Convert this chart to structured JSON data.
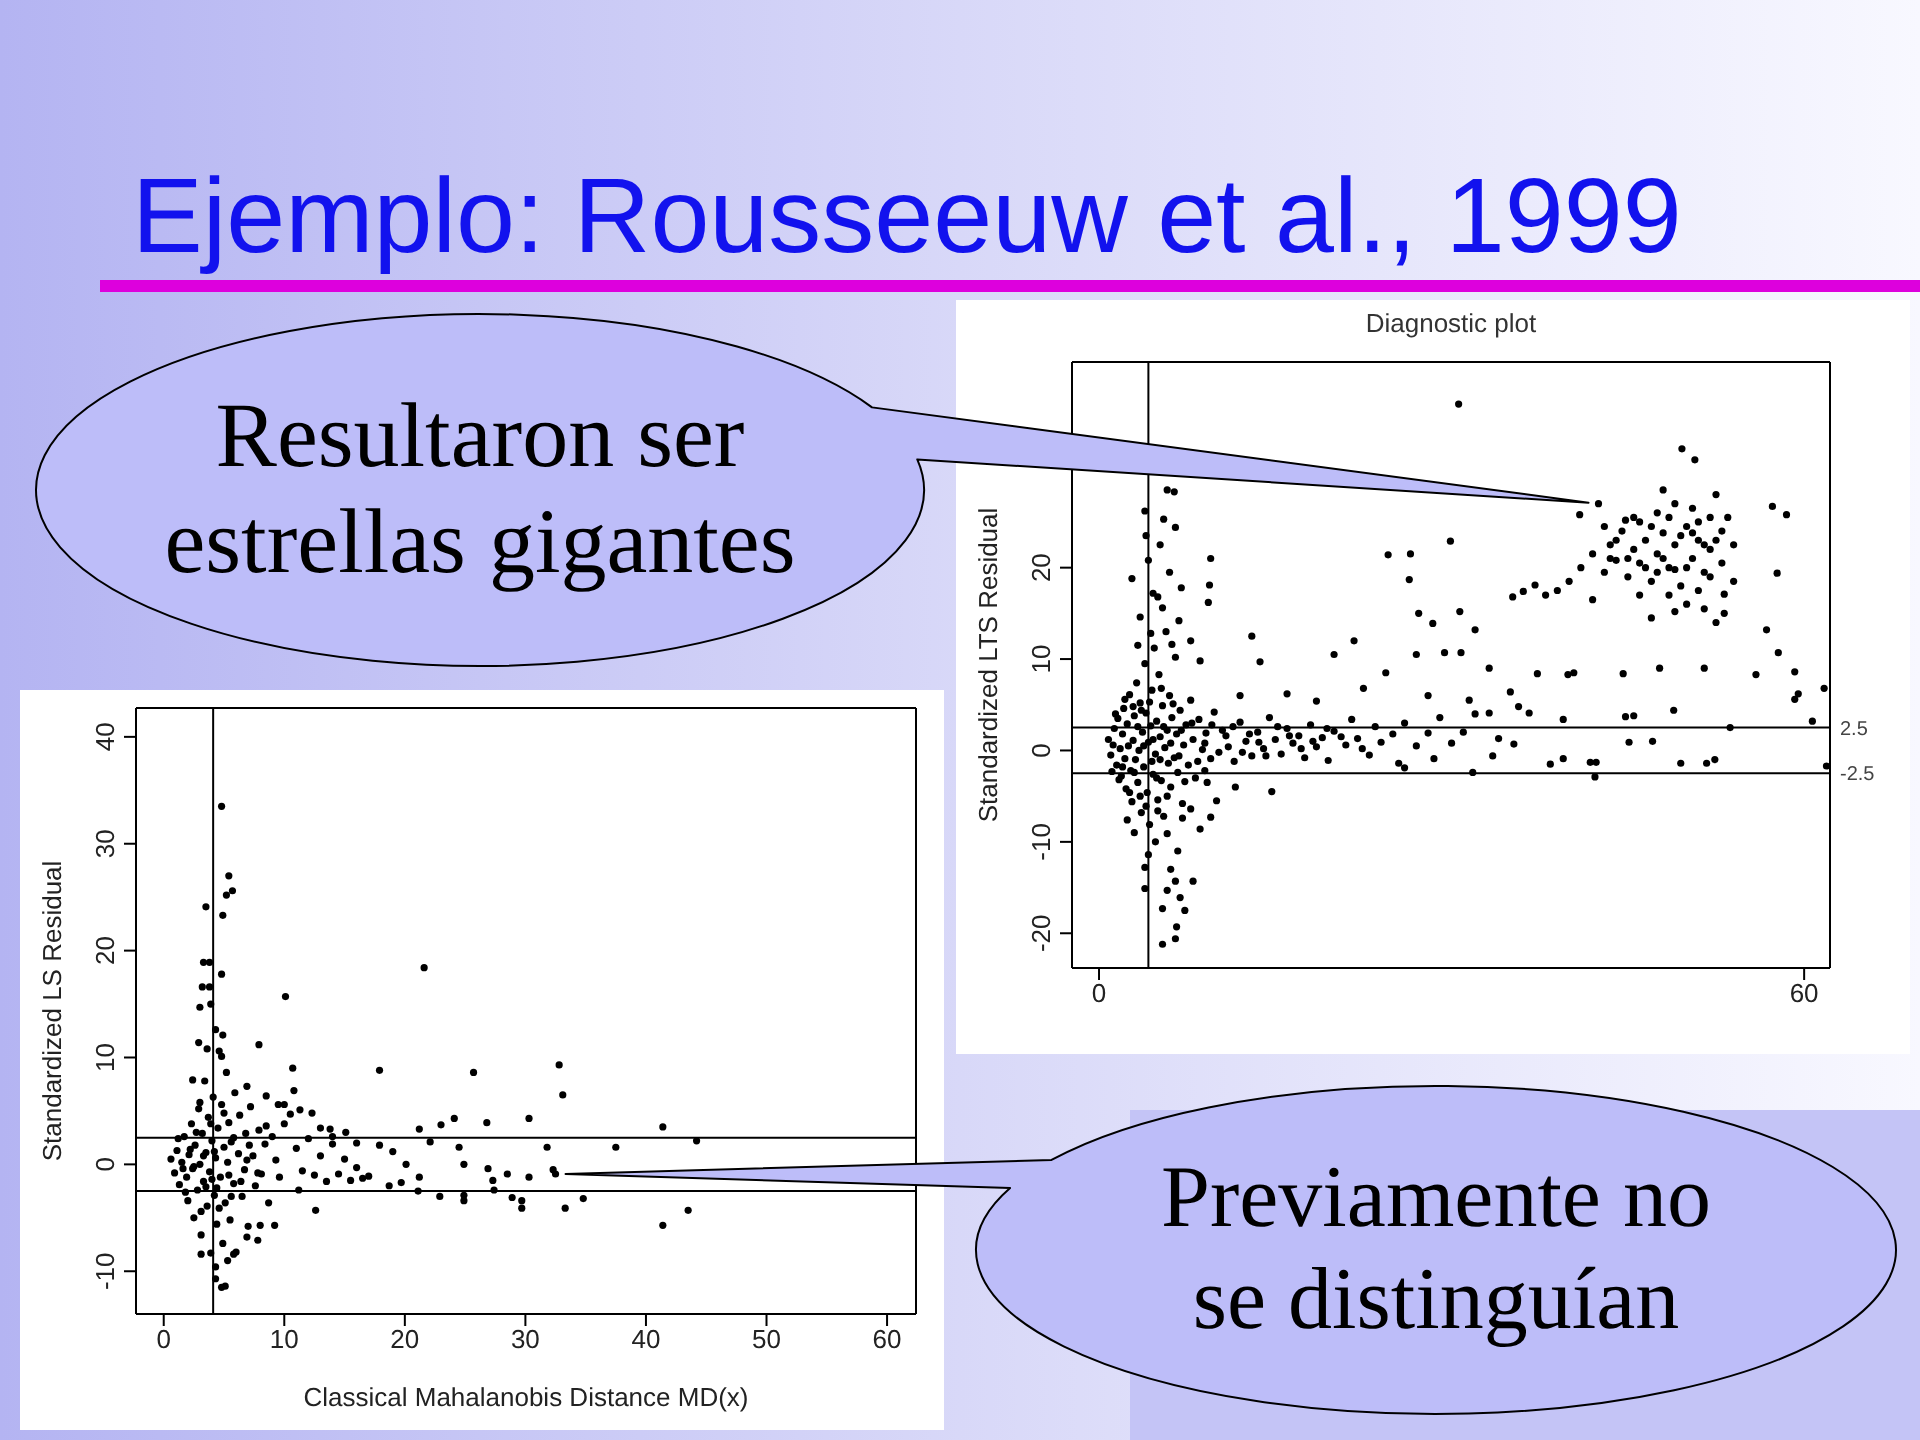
{
  "chart_data": [
    {
      "type": "other",
      "title": "Ejemplo: Rousseeuw et al., 1999"
    },
    {
      "type": "scatter",
      "title": "Diagnostic plot",
      "ylabel": "Standardized LTS Residual",
      "color": "#000000",
      "marker": "circle",
      "xlim": [
        -2.3,
        62.2
      ],
      "ylim": [
        -23.8,
        42.5
      ],
      "xticks": [
        0,
        60
      ],
      "yticks": [
        -20,
        -10,
        0,
        10,
        20
      ],
      "ref_lines": [
        {
          "axis": "y",
          "value": 2.5,
          "label": "2.5"
        },
        {
          "axis": "y",
          "value": -2.5,
          "label": "-2.5"
        },
        {
          "axis": "x",
          "value": 4.2
        }
      ],
      "annotations": [
        {
          "text": "Resultaron ser estrellas gigantes",
          "x": 42.5,
          "y": 27.0
        }
      ],
      "x": [
        0.8,
        1.0,
        1.2,
        1.3,
        1.5,
        1.6,
        1.8,
        1.9,
        2.0,
        2.1,
        2.2,
        2.3,
        2.4,
        2.5,
        2.6,
        2.7,
        2.8,
        2.9,
        3.0,
        3.1,
        3.2,
        3.3,
        3.4,
        3.5,
        3.6,
        3.7,
        3.8,
        3.9,
        4.0,
        4.1,
        4.2,
        4.3,
        4.4,
        4.5,
        4.6,
        4.7,
        4.8,
        4.9,
        5.0,
        5.1,
        5.2,
        5.3,
        5.4,
        5.5,
        5.6,
        5.7,
        5.8,
        5.9,
        6.0,
        6.1,
        6.2,
        6.4,
        6.5,
        6.6,
        6.7,
        6.9,
        7.1,
        7.2,
        7.4,
        7.6,
        7.8,
        8.0,
        8.2,
        8.5,
        8.8,
        9.1,
        9.5,
        9.8,
        1.4,
        1.7,
        2.2,
        2.6,
        3.0,
        3.3,
        3.6,
        4.0,
        4.3,
        4.6,
        4.9,
        5.2,
        5.5,
        5.8,
        6.3,
        6.8,
        7.3,
        7.9,
        8.4,
        9.0,
        2.0,
        2.9,
        3.8,
        4.5,
        5.3,
        6.1,
        7.0,
        1.1,
        3.5,
        5.0,
        3.9,
        5.8,
        6.4,
        5.5,
        6.5,
        4.2,
        2.8,
        9.5,
        9.4,
        9.3,
        5.2,
        6.0,
        4.6,
        7.0,
        5.4,
        3.5,
        6.8,
        4.4,
        7.8,
        3.3,
        8.6,
        6.2,
        5.0,
        4.0,
        14.7,
        11.6,
        10.0,
        9.2,
        7.8,
        7.1,
        6.7,
        5.8,
        6.1,
        6.5,
        8.0,
        5.8,
        6.9,
        7.3,
        6.6,
        6.5,
        5.4,
        5.4,
        3.9,
        3.9,
        4.2,
        3.0,
        4.8,
        2.4,
        8.6,
        9.5,
        10.5,
        11.0,
        11.5,
        12.0,
        12.5,
        13.0,
        13.5,
        14.0,
        14.5,
        15.0,
        15.5,
        16.0,
        16.5,
        17.0,
        17.5,
        18.0,
        18.5,
        19.0,
        19.5,
        20.0,
        21.0,
        21.5,
        22.0,
        23.0,
        23.5,
        24.0,
        25.0,
        25.5,
        26.0,
        26.0,
        27.0,
        28.0,
        28.5,
        29.0,
        30.0,
        31.0,
        31.8,
        32.0,
        33.2,
        33.5,
        34.0,
        35.3,
        35.7,
        36.6,
        9.0,
        9.6,
        10.2,
        10.8,
        11.4,
        12.2,
        12.8,
        13.6,
        14.2,
        15.2,
        16.2,
        17.2,
        18.2,
        19.4,
        20.6,
        22.4,
        38.4,
        39.5,
        39.5,
        41.8,
        42.3,
        42.2,
        44.8,
        45.5,
        45.1,
        47.1,
        48.9,
        49.5,
        51.7,
        52.4,
        53.7,
        59.2,
        60.7,
        61.9,
        13.0,
        13.7,
        20.0,
        21.7,
        27.0,
        29.4,
        30.8,
        33.2,
        24.4,
        37.3,
        39.9,
        40.4,
        44.6,
        47.7,
        51.5,
        55.9,
        59.2,
        61.7,
        59.5,
        26.5,
        24.6,
        29.9,
        26.4,
        27.2,
        28.4,
        30.7,
        32.0,
        35.2,
        36.1,
        37.1,
        30.6,
        16.0,
        18.5,
        22.5,
        28.0,
        31.5,
        35.0,
        12.0,
        49.6,
        50.7,
        57.3,
        58.5,
        57.7,
        56.8,
        57.8,
        53.2,
        53.2,
        40.9,
        41.0,
        42.0,
        43.0,
        43.5,
        44.0,
        44.5,
        45.0,
        45.5,
        46.0,
        46.0,
        46.5,
        47.0,
        47.5,
        47.5,
        48.0,
        48.5,
        49.0,
        49.0,
        49.5,
        50.0,
        50.5,
        50.5,
        51.0,
        51.5,
        52.0,
        52.0,
        52.5,
        53.0,
        53.0,
        48.0,
        46.0,
        50.0,
        51.5,
        44.8,
        43.0,
        40.0,
        39.0,
        38.0,
        42.0,
        47.0,
        49.0,
        52.5,
        54.0,
        54.0,
        42.5,
        44.0,
        45.0,
        46.5,
        47.0,
        48.0,
        48.5,
        49.5,
        50.0,
        51.0,
        51.5,
        52.5,
        53.5,
        45.5,
        47.5,
        49.0,
        50.5,
        52.0,
        43.5,
        48.5,
        51.0
      ],
      "values": [
        1.2,
        -0.5,
        0.6,
        2.4,
        -1.6,
        3.5,
        0.2,
        -2.8,
        1.8,
        4.6,
        -0.9,
        -4.2,
        2.9,
        0.5,
        6.1,
        -2.2,
        -5.6,
        1.1,
        3.8,
        -1.0,
        7.4,
        -3.5,
        0.0,
        5.2,
        -6.8,
        2.0,
        -1.8,
        9.5,
        4.1,
        -4.6,
        0.9,
        -8.1,
        2.7,
        6.6,
        -2.6,
        11.2,
        -0.4,
        3.2,
        -5.4,
        8.3,
        1.5,
        -3.3,
        4.9,
        -7.2,
        0.3,
        13.0,
        2.2,
        -1.4,
        6.0,
        -4.0,
        3.6,
        -0.8,
        10.2,
        1.8,
        -2.4,
        4.4,
        -5.8,
        0.6,
        2.8,
        -1.6,
        5.5,
        1.2,
        -3.0,
        3.4,
        0.1,
        1.9,
        -0.9,
        4.2,
        4.0,
        -3.2,
        5.6,
        -4.6,
        -2.4,
        2.6,
        4.4,
        -6.1,
        5.3,
        1.2,
        -3.0,
        -1.0,
        2.6,
        -5.0,
        5.1,
        -0.6,
        -3.4,
        3.0,
        -1.2,
        -2.2,
        -1.8,
        4.8,
        0.5,
        -1.2,
        6.8,
        0.8,
        2.2,
        -2.3,
        -5.0,
        -6.6,
        26.2,
        28.5,
        28.3,
        25.3,
        24.4,
        20.8,
        18.8,
        21.0,
        18.1,
        16.2,
        22.5,
        19.5,
        17.2,
        17.8,
        15.6,
        14.6,
        14.2,
        12.8,
        12.0,
        11.5,
        9.8,
        11.6,
        16.8,
        23.5,
        -4.5,
        -4.0,
        -5.5,
        -3.5,
        -6.4,
        -7.4,
        -11.0,
        -9.1,
        -13.0,
        -14.3,
        -14.3,
        -15.3,
        -16.1,
        -17.5,
        -19.3,
        -20.6,
        -21.2,
        -17.3,
        -12.8,
        -15.1,
        -11.4,
        -9.0,
        -10.0,
        -7.6,
        -8.6,
        -7.3,
        2.2,
        0.4,
        -1.2,
        3.1,
        1.0,
        -0.6,
        2.0,
        0.2,
        3.6,
        1.2,
        -0.4,
        2.4,
        0.8,
        1.6,
        -0.8,
        2.8,
        0.4,
        1.4,
        -1.1,
        2.1,
        0.6,
        3.4,
        1.3,
        -0.5,
        2.6,
        0.9,
        1.8,
        -1.4,
        3.0,
        -1.9,
        0.5,
        1.9,
        -0.9,
        3.6,
        0.8,
        2.0,
        -2.4,
        4.0,
        4.1,
        -0.6,
        1.3,
        0.7,
        4.8,
        4.1,
        0.8,
        2.8,
        -0.2,
        1.6,
        2.6,
        -0.2,
        1.8,
        0.9,
        -0.6,
        2.6,
        1.6,
        0.2,
        1.0,
        2.4,
        1.5,
        0.2,
        -1.5,
        3.4,
        -0.9,
        -1.3,
        -1.3,
        -2.9,
        3.7,
        3.8,
        0.9,
        1.0,
        4.4,
        -1.4,
        -1.4,
        -1.0,
        2.5,
        5.6,
        3.2,
        -1.7,
        12.5,
        9.7,
        10.5,
        12.0,
        10.5,
        10.7,
        10.7,
        9.0,
        8.5,
        8.4,
        8.3,
        8.5,
        8.4,
        9.0,
        9.0,
        8.3,
        8.6,
        6.8,
        6.2,
        21.5,
        21.4,
        22.9,
        18.7,
        15.0,
        13.9,
        15.2,
        13.2,
        16.8,
        17.4,
        18.1,
        37.9,
        6.2,
        5.4,
        6.8,
        6.0,
        5.5,
        6.4,
        6.0,
        33.0,
        31.8,
        26.7,
        25.8,
        19.4,
        13.2,
        10.7,
        17.1,
        15.0,
        25.8,
        20.0,
        21.5,
        19.5,
        22.5,
        20.8,
        24.0,
        19.0,
        22.0,
        25.0,
        20.5,
        23.0,
        18.5,
        21.5,
        26.0,
        23.8,
        20.0,
        22.5,
        27.0,
        18.0,
        24.5,
        21.0,
        26.5,
        23.0,
        19.5,
        25.5,
        22.0,
        28.0,
        20.5,
        24.0,
        28.5,
        17.0,
        16.0,
        15.5,
        25.2,
        24.5,
        18.5,
        17.5,
        17.0,
        16.5,
        14.5,
        15.2,
        14.0,
        22.5,
        18.5,
        27.0,
        23.0,
        21.0,
        20.0,
        24.5,
        21.0,
        25.5,
        23.5,
        20.0,
        25.0,
        22.5,
        23.0,
        25.5,
        25.5,
        19.5,
        19.8,
        23.8,
        19.0,
        21.0,
        17.0,
        17.5
      ]
    },
    {
      "type": "scatter",
      "xlabel": "Classical Mahalanobis Distance MD(x)",
      "ylabel": "Standardized LS Residual",
      "color": "#000000",
      "marker": "circle",
      "xlim": [
        -2.3,
        62.4
      ],
      "ylim": [
        -14,
        42.7
      ],
      "xticks": [
        0,
        10,
        20,
        30,
        40,
        50,
        60
      ],
      "yticks": [
        -10,
        0,
        10,
        20,
        30,
        40
      ],
      "ref_lines": [
        {
          "axis": "y",
          "value": 2.5
        },
        {
          "axis": "y",
          "value": -2.5
        },
        {
          "axis": "x",
          "value": 4.1
        }
      ],
      "annotations": [
        {
          "text": "Previamente no se distinguían",
          "x": 32.5,
          "y": -0.9
        }
      ],
      "x": [
        0.6,
        0.9,
        1.1,
        1.3,
        1.5,
        1.7,
        1.9,
        2.0,
        2.1,
        2.3,
        2.4,
        2.5,
        2.6,
        2.8,
        2.9,
        3.0,
        3.1,
        3.2,
        3.3,
        3.4,
        3.5,
        3.6,
        3.7,
        3.8,
        3.9,
        4.0,
        4.1,
        4.2,
        4.3,
        4.4,
        4.5,
        4.6,
        4.7,
        4.8,
        4.9,
        5.0,
        5.1,
        5.2,
        5.3,
        5.4,
        5.5,
        5.6,
        5.8,
        5.9,
        6.0,
        6.2,
        6.3,
        6.5,
        6.7,
        6.8,
        7.0,
        7.2,
        7.4,
        7.6,
        7.9,
        8.1,
        8.4,
        8.7,
        9.0,
        9.3,
        9.6,
        10.0,
        1.2,
        1.8,
        2.2,
        2.7,
        3.1,
        3.5,
        3.9,
        4.2,
        4.6,
        5.0,
        5.4,
        5.8,
        6.4,
        7.1,
        7.8,
        8.5,
        2.5,
        3.3,
        4.4,
        5.6,
        6.9,
        1.6,
        3.0,
        4.0,
        4.8,
        5.4,
        5.2,
        5.7,
        3.5,
        4.9,
        3.3,
        3.8,
        4.8,
        3.2,
        3.8,
        3.0,
        3.9,
        21.6,
        10.1,
        4.3,
        4.9,
        2.9,
        3.6,
        4.8,
        7.9,
        2.4,
        6.9,
        10.7,
        10.8,
        17.9,
        25.7,
        32.8,
        33.1,
        30.3,
        26.8,
        24.1,
        23.0,
        21.2,
        22.1,
        24.5,
        17.9,
        15.1,
        31.8,
        41.4,
        37.5,
        44.2,
        12.6,
        9.2,
        41.4,
        43.5,
        33.3,
        34.8,
        29.7,
        29.7,
        28.9,
        27.4,
        24.9,
        24.9,
        22.9,
        21.1,
        19.7,
        18.7,
        24.9,
        26.9,
        28.5,
        30.3,
        21.2,
        20.1,
        32.3,
        32.5,
        27.3,
        10.0,
        11.3,
        14.0,
        16.0,
        19.0,
        13.0,
        4.3,
        4.8,
        5.1,
        3.1,
        4.3,
        5.8,
        6.9,
        7.8,
        8.0,
        5.3,
        11.0,
        11.5,
        12.0,
        12.5,
        13.0,
        13.5,
        14.0,
        14.5,
        15.0,
        15.5,
        16.0,
        16.5,
        17.0,
        10.5,
        11.2,
        9.5,
        8.5,
        12.3,
        13.8
      ],
      "values": [
        0.5,
        -0.8,
        1.3,
        -1.9,
        0.2,
        2.6,
        -1.2,
        -3.4,
        0.9,
        3.8,
        -0.4,
        -5.0,
        1.8,
        -2.4,
        5.2,
        0.0,
        -6.6,
        2.9,
        -1.6,
        7.8,
        1.1,
        -3.9,
        4.4,
        -0.7,
        -8.3,
        2.2,
        6.3,
        -2.9,
        0.6,
        -5.6,
        3.4,
        10.6,
        -1.2,
        5.6,
        -7.4,
        1.6,
        -3.6,
        8.6,
        0.2,
        3.9,
        -5.2,
        2.1,
        -1.8,
        6.7,
        -8.2,
        1.0,
        4.6,
        -3.0,
        -0.5,
        2.9,
        -5.8,
        5.4,
        0.8,
        -2.0,
        3.2,
        -0.9,
        1.9,
        -3.6,
        2.6,
        0.4,
        -1.2,
        3.8,
        2.4,
        -2.6,
        1.4,
        3.0,
        -4.4,
        -2.1,
        3.8,
        1.2,
        -4.1,
        4.8,
        -1.0,
        2.5,
        -1.6,
        1.8,
        -0.8,
        3.6,
        -0.2,
        0.8,
        -2.2,
        -3.0,
        0.4,
        -0.4,
        5.8,
        -1.4,
        33.5,
        27.0,
        25.2,
        25.6,
        24.1,
        23.3,
        18.9,
        18.9,
        17.8,
        16.6,
        16.6,
        14.7,
        15.0,
        18.4,
        15.7,
        12.6,
        12.1,
        11.4,
        10.8,
        10.1,
        11.2,
        7.9,
        7.3,
        9.0,
        6.9,
        8.8,
        8.6,
        9.3,
        6.5,
        4.3,
        3.9,
        4.3,
        3.7,
        3.3,
        2.1,
        1.6,
        1.8,
        3.0,
        1.6,
        3.5,
        1.6,
        2.2,
        -4.3,
        -5.7,
        -5.7,
        -4.3,
        -4.1,
        -3.2,
        -3.4,
        -4.1,
        -3.1,
        -2.4,
        -2.9,
        -3.4,
        -3.0,
        -2.5,
        -1.7,
        -2.0,
        0.0,
        -0.4,
        -0.9,
        -1.2,
        -1.2,
        0.0,
        -0.5,
        -0.9,
        -1.5,
        5.6,
        5.1,
        2.6,
        2.0,
        1.2,
        3.4,
        -10.7,
        -11.5,
        -11.4,
        -8.4,
        -9.6,
        -8.4,
        -6.8,
        -7.1,
        -5.7,
        -9.0,
        1.5,
        -0.6,
        2.4,
        -1.0,
        0.8,
        -1.6,
        1.9,
        -0.9,
        0.5,
        -1.5,
        -0.3,
        -1.3,
        -1.1,
        4.7,
        -2.4,
        5.6,
        6.4,
        4.8,
        3.3
      ]
    }
  ]
}
